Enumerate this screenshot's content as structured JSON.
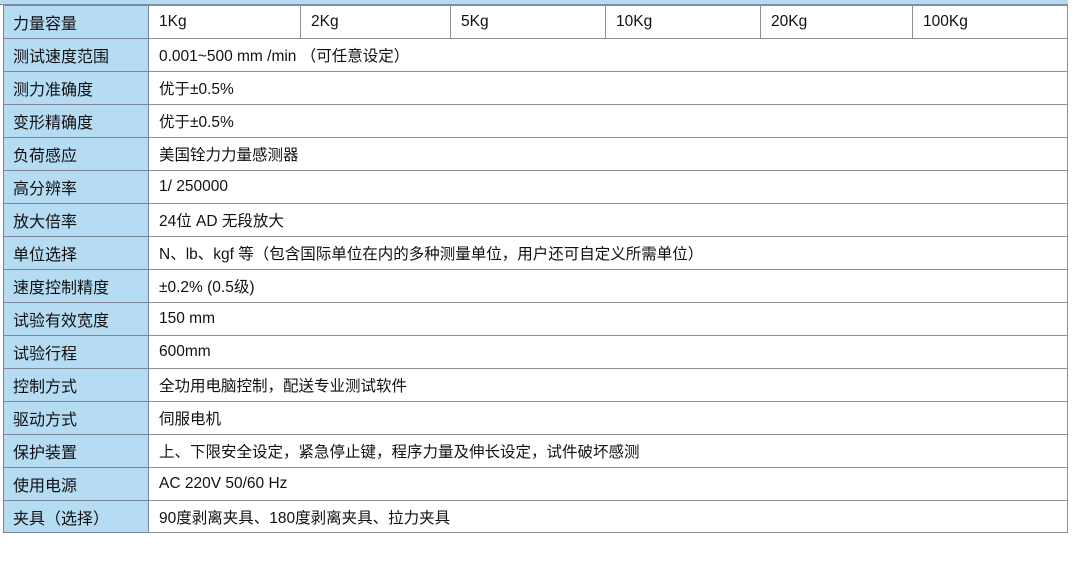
{
  "capacity": {
    "label": "力量容量",
    "values": [
      "1Kg",
      "2Kg",
      "5Kg",
      "10Kg",
      "20Kg",
      "100Kg"
    ]
  },
  "rows": [
    {
      "label": "测试速度范围",
      "value": "0.001~500  mm /min   （可任意设定）"
    },
    {
      "label": "测力准确度",
      "value": "优于±0.5%"
    },
    {
      "label": "变形精确度",
      "value": "优于±0.5%"
    },
    {
      "label": "负荷感应",
      "value": "美国铨力力量感测器"
    },
    {
      "label": "高分辨率",
      "value": "1/ 250000"
    },
    {
      "label": "放大倍率",
      "value": "24位 AD 无段放大"
    },
    {
      "label": "单位选择",
      "value": "N、lb、kgf 等（包含国际单位在内的多种测量单位，用户还可自定义所需单位）"
    },
    {
      "label": "速度控制精度",
      "value": "±0.2% (0.5级)"
    },
    {
      "label": "试验有效宽度",
      "value": "150 mm"
    },
    {
      "label": "试验行程",
      "value": "600mm"
    },
    {
      "label": "控制方式",
      "value": "全功用电脑控制，配送专业测试软件"
    },
    {
      "label": "驱动方式",
      "value": "伺服电机"
    },
    {
      "label": "保护装置",
      "value": "上、下限安全设定，紧急停止键，程序力量及伸长设定，试件破坏感测"
    },
    {
      "label": "使用电源",
      "value": "AC 220V  50/60 Hz"
    },
    {
      "label": "夹具（选择）",
      "value": "90度剥离夹具、180度剥离夹具、拉力夹具"
    }
  ]
}
